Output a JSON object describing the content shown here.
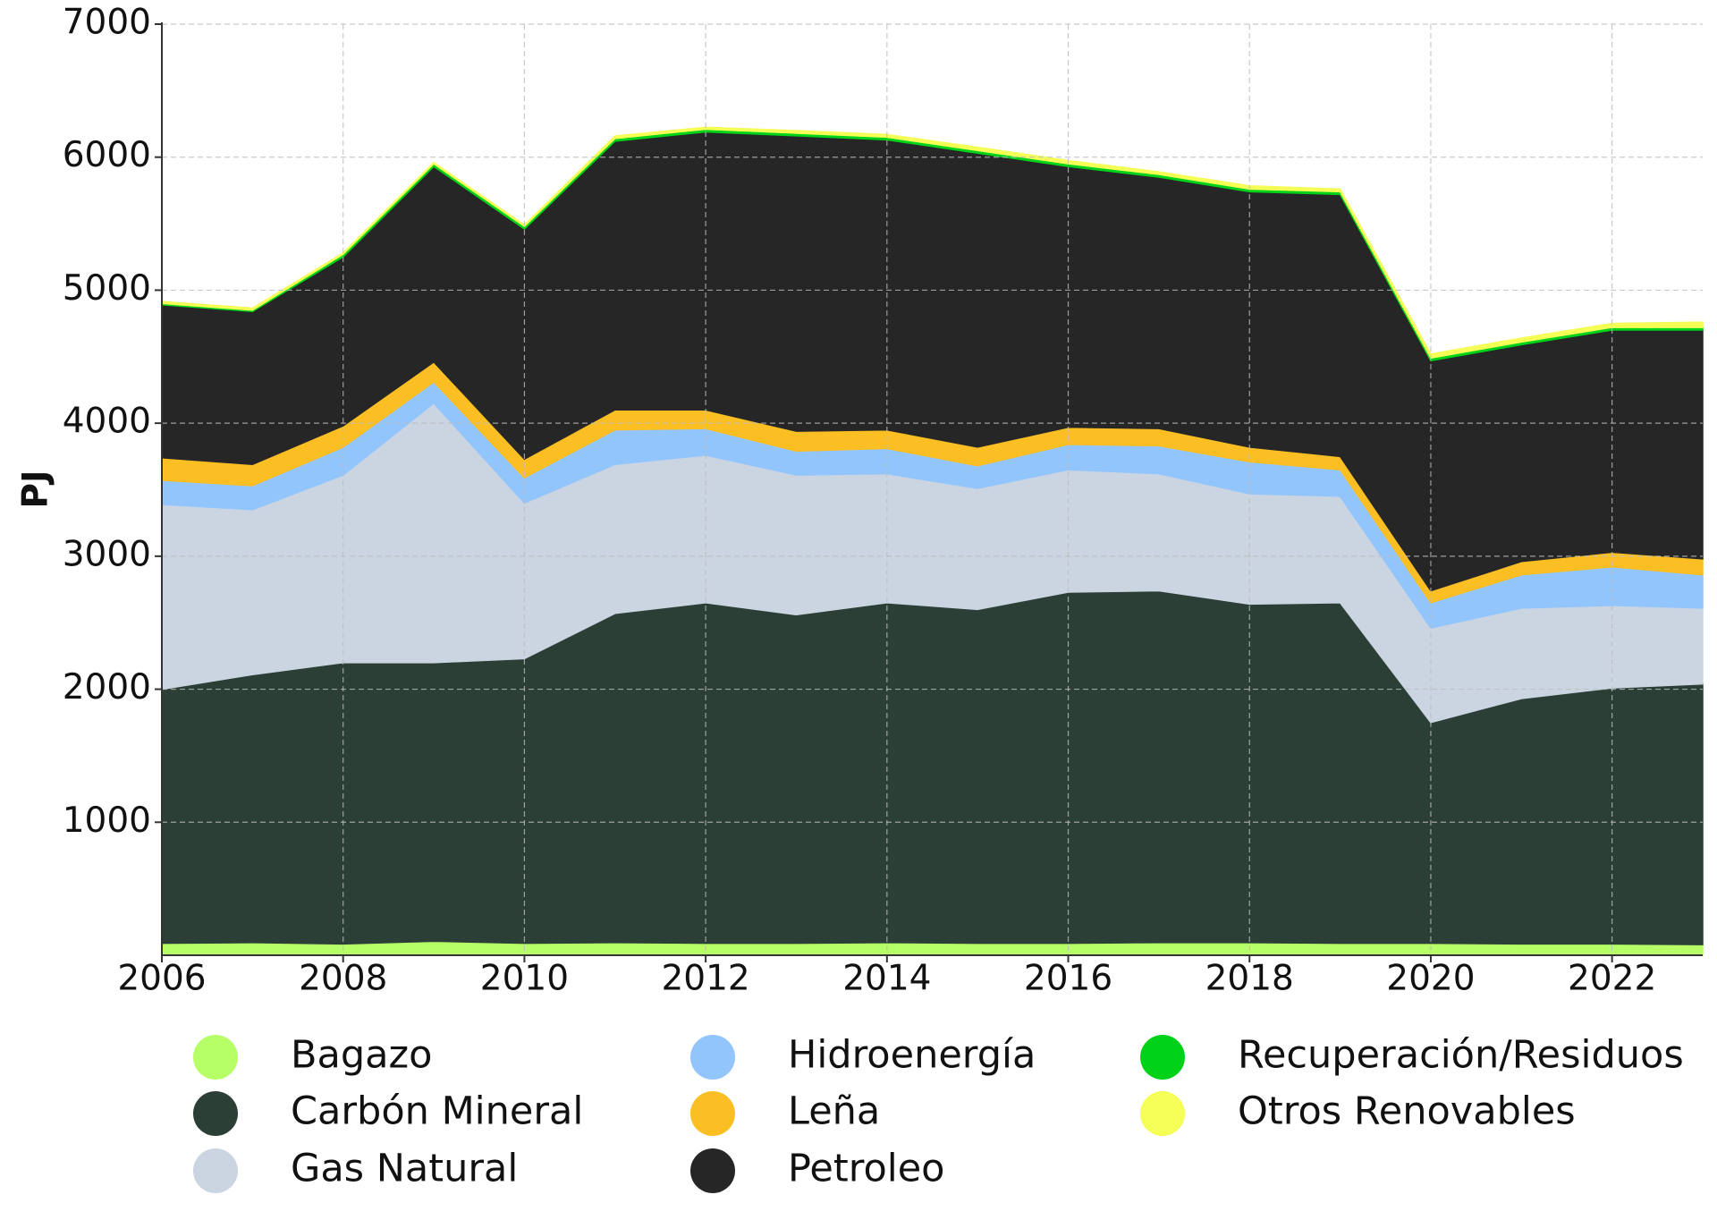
{
  "chart_data": {
    "type": "stacked_area",
    "y_label": "PJ",
    "x": [
      2006,
      2007,
      2008,
      2009,
      2010,
      2011,
      2012,
      2013,
      2014,
      2015,
      2016,
      2017,
      2018,
      2019,
      2020,
      2021,
      2022,
      2023
    ],
    "xlim": [
      2006,
      2023
    ],
    "xticks": [
      2006,
      2008,
      2010,
      2012,
      2014,
      2016,
      2018,
      2020,
      2022
    ],
    "ylim": [
      0,
      7000
    ],
    "yticks": [
      1000,
      2000,
      3000,
      4000,
      5000,
      6000,
      7000
    ],
    "grid": true,
    "legend": "bottom",
    "series": [
      {
        "name": "Bagazo",
        "color": "#b7ff66",
        "values": [
          90,
          95,
          85,
          105,
          90,
          95,
          90,
          90,
          95,
          90,
          90,
          95,
          95,
          90,
          90,
          85,
          85,
          80
        ]
      },
      {
        "name": "Carbón Mineral",
        "color": "#2c3f37",
        "values": [
          1910,
          2015,
          2115,
          2095,
          2140,
          2475,
          2560,
          2470,
          2555,
          2510,
          2640,
          2645,
          2545,
          2560,
          1660,
          1845,
          1925,
          1960
        ]
      },
      {
        "name": "Gas Natural",
        "color": "#cbd5e1",
        "values": [
          1390,
          1240,
          1410,
          1950,
          1170,
          1120,
          1110,
          1050,
          970,
          910,
          920,
          880,
          830,
          800,
          710,
          680,
          620,
          570
        ]
      },
      {
        "name": "Hidroenergía",
        "color": "#93c5fd",
        "values": [
          180,
          180,
          210,
          160,
          190,
          260,
          200,
          180,
          190,
          170,
          190,
          210,
          240,
          200,
          190,
          250,
          290,
          250
        ]
      },
      {
        "name": "Leña",
        "color": "#fbbf24",
        "values": [
          170,
          160,
          160,
          150,
          140,
          150,
          140,
          150,
          140,
          140,
          130,
          130,
          110,
          100,
          90,
          100,
          110,
          120
        ]
      },
      {
        "name": "Petroleo",
        "color": "#262626",
        "values": [
          1150,
          1150,
          1270,
          1470,
          1730,
          2020,
          2090,
          2220,
          2180,
          2210,
          1960,
          1890,
          1920,
          1970,
          1730,
          1630,
          1670,
          1720
        ]
      },
      {
        "name": "Recuperación/Residuos",
        "color": "#00d21a",
        "values": [
          10,
          10,
          20,
          20,
          20,
          20,
          20,
          20,
          20,
          20,
          20,
          20,
          20,
          20,
          20,
          20,
          20,
          20
        ]
      },
      {
        "name": "Otros Renovables",
        "color": "#f5ff55",
        "values": [
          15,
          15,
          10,
          10,
          10,
          20,
          15,
          20,
          20,
          25,
          25,
          20,
          25,
          20,
          30,
          30,
          30,
          40
        ]
      }
    ]
  }
}
